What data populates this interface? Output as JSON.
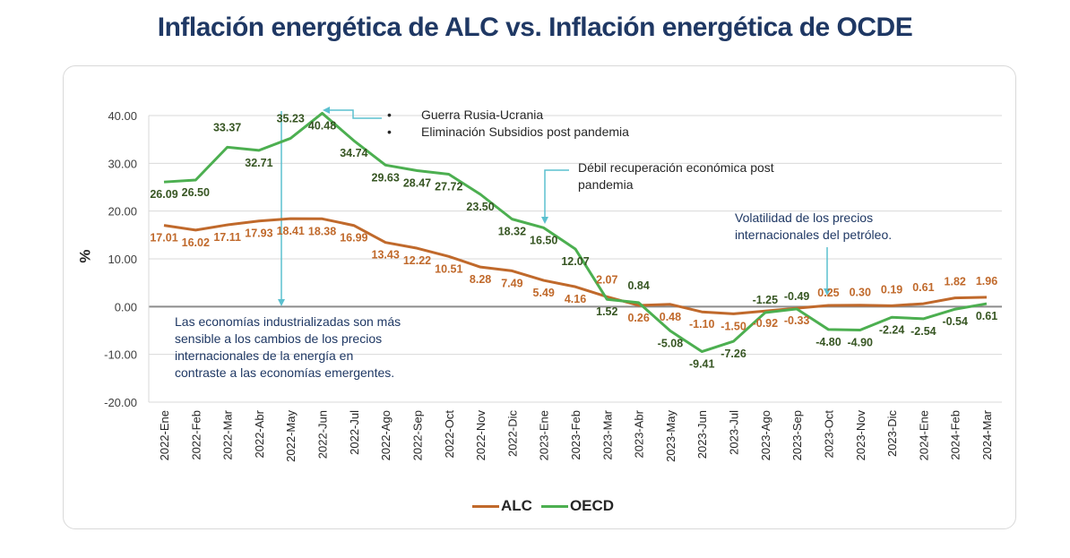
{
  "chart_data": {
    "type": "line",
    "title": "Inflación energética de ALC vs. Inflación energética de OCDE",
    "xlabel": "",
    "ylabel": "%",
    "ylim": [
      -20,
      40
    ],
    "yticks": [
      "40.00",
      "30.00",
      "20.00",
      "10.00",
      "0.00",
      "-10.00",
      "-20.00"
    ],
    "ytick_values": [
      40,
      30,
      20,
      10,
      0,
      -10,
      -20
    ],
    "grid": true,
    "legend_position": "bottom",
    "categories": [
      "2022-Ene",
      "2022-Feb",
      "2022-Mar",
      "2022-Abr",
      "2022-May",
      "2022-Jun",
      "2022-Jul",
      "2022-Ago",
      "2022-Sep",
      "2022-Oct",
      "2022-Nov",
      "2022-Dic",
      "2023-Ene",
      "2023-Feb",
      "2023-Mar",
      "2023-Abr",
      "2023-May",
      "2023-Jun",
      "2023-Jul",
      "2023-Ago",
      "2023-Sep",
      "2023-Oct",
      "2023-Nov",
      "2023-Dic",
      "2024-Ene",
      "2024-Feb",
      "2024-Mar"
    ],
    "series": [
      {
        "name": "ALC",
        "color": "#c0692b",
        "label_color": "#c0692b",
        "values": [
          17.01,
          16.02,
          17.11,
          17.93,
          18.41,
          18.38,
          16.99,
          13.43,
          12.22,
          10.51,
          8.28,
          7.49,
          5.49,
          4.16,
          2.07,
          0.26,
          0.48,
          -1.1,
          -1.5,
          -0.92,
          -0.33,
          0.25,
          0.3,
          0.19,
          0.61,
          1.82,
          1.96
        ],
        "labels": [
          "17.01",
          "16.02",
          "17.11",
          "17.93",
          "18.41",
          "18.38",
          "16.99",
          "13.43",
          "12.22",
          "10.51",
          "8.28",
          "7.49",
          "5.49",
          "4.16",
          "2.07",
          "0.26",
          "0.48",
          "-1.10",
          "-1.50",
          "-0.92",
          "-0.33",
          "0.25",
          "0.30",
          "0.19",
          "0.61",
          "1.82",
          "1.96"
        ]
      },
      {
        "name": "OECD",
        "color": "#4caf50",
        "label_color": "#375623",
        "values": [
          26.09,
          26.5,
          33.37,
          32.71,
          35.23,
          40.48,
          34.74,
          29.63,
          28.47,
          27.72,
          23.5,
          18.32,
          16.5,
          12.07,
          1.52,
          0.84,
          -5.08,
          -9.41,
          -7.26,
          -1.25,
          -0.49,
          -4.8,
          -4.9,
          -2.24,
          -2.54,
          -0.54,
          0.61
        ],
        "labels": [
          "26.09",
          "26.50",
          "33.37",
          "32.71",
          "35.23",
          "40.48",
          "34.74",
          "29.63",
          "28.47",
          "27.72",
          "23.50",
          "18.32",
          "16.50",
          "12.07",
          "1.52",
          "0.84",
          "-5.08",
          "-9.41",
          "-7.26",
          "-1.25",
          "-0.49",
          "-4.80",
          "-4.90",
          "-2.24",
          "-2.54",
          "-0.54",
          "0.61"
        ]
      }
    ],
    "annotations": {
      "war": [
        "Guerra Rusia-Ucrania",
        "Eliminación Subsidios post pandemia"
      ],
      "weak_recovery": [
        "Débil recuperación económica post",
        "pandemia"
      ],
      "volatility": [
        "Volatilidad  de los precios",
        "internacionales del petróleo."
      ],
      "industrialized": [
        "Las economías industrializadas son más",
        "sensible a los cambios de los precios",
        "internacionales de la energía en",
        "contraste a las economías emergentes."
      ],
      "arrow_color": "#5bc0cf"
    }
  },
  "legend": {
    "alc": "ALC",
    "oecd": "OECD"
  }
}
